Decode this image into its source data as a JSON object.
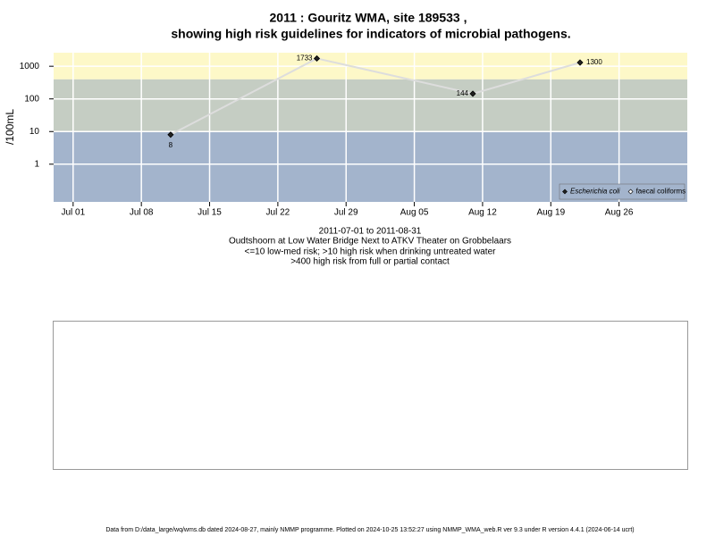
{
  "chart_data": {
    "type": "line",
    "title": [
      "2011 : Gouritz WMA, site 189533 ,",
      "showing high risk guidelines for indicators of microbial pathogens."
    ],
    "notes": [
      "2011-07-01 to 2011-08-31",
      "Oudtshoorn at Low Water Bridge Next to ATKV Theater on Grobbelaars",
      "<=10 low-med risk; >10 high risk when drinking untreated water",
      ">400 high risk from full or partial contact"
    ],
    "y_label": "/100mL",
    "x": [
      "2011-07-11",
      "2011-07-26",
      "2011-08-11",
      "2011-08-22"
    ],
    "series": [
      {
        "name": "Escherichia coli",
        "color": "#222222",
        "line_color": "#dddddd",
        "values": [
          8,
          1733,
          144,
          1300
        ]
      },
      {
        "name": "faecal coliforms",
        "color": "#ffffff",
        "values": [
          null,
          null,
          null,
          null
        ]
      }
    ],
    "xlim": [
      "2011-06-29",
      "2011-09-02"
    ],
    "xticks": [
      {
        "value": "2011-07-01",
        "label": "Jul 01"
      },
      {
        "value": "2011-07-08",
        "label": "Jul 08"
      },
      {
        "value": "2011-07-15",
        "label": "Jul 15"
      },
      {
        "value": "2011-07-22",
        "label": "Jul 22"
      },
      {
        "value": "2011-07-29",
        "label": "Jul 29"
      },
      {
        "value": "2011-08-05",
        "label": "Aug 05"
      },
      {
        "value": "2011-08-12",
        "label": "Aug 12"
      },
      {
        "value": "2011-08-19",
        "label": "Aug 19"
      },
      {
        "value": "2011-08-26",
        "label": "Aug 26"
      }
    ],
    "ylim": [
      0.07,
      2600
    ],
    "yticks": [
      1,
      10,
      100,
      1000
    ],
    "log_y": true,
    "grid": true,
    "bands": [
      {
        "range": [
          0.07,
          10
        ],
        "color": "#a3b4cc"
      },
      {
        "range": [
          10,
          400
        ],
        "color": "#c5cdc3"
      },
      {
        "range": [
          400,
          2600
        ],
        "color": "#fdf8c8"
      }
    ],
    "legend": "bottom-right"
  },
  "footer": "Data from D:/data_large/wq/wms.db dated 2024-08-27, mainly NMMP programme. Plotted on 2024-10-25 13:52:27 using NMMP_WMA_web.R ver 9.3 under R version 4.4.1 (2024-06-14 ucrt)"
}
